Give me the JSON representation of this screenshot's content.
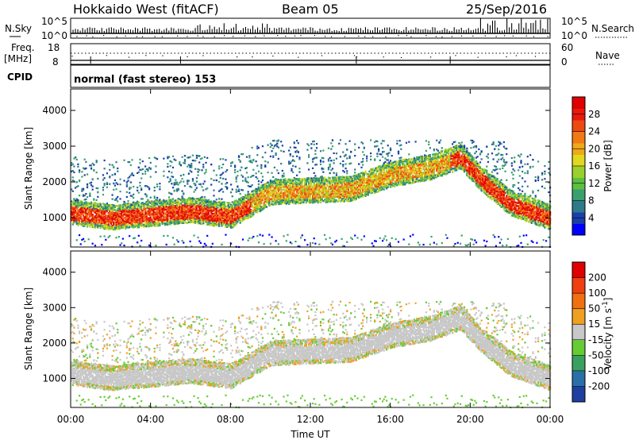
{
  "header": {
    "station": "Hokkaido West (fitACF)",
    "beam": "Beam 05",
    "date": "25/Sep/2016"
  },
  "noise_panel": {
    "left_label": "N.Sky",
    "right_label": "N.Search",
    "left_ticks": [
      "10^5",
      "10^0"
    ],
    "right_ticks": [
      "10^5",
      "10^0"
    ]
  },
  "freq_panel": {
    "left_label_top": "Freq.",
    "left_label_units": "[MHz]",
    "right_label": "Nave",
    "left_ticks": [
      "18",
      "8"
    ],
    "right_ticks": [
      "60",
      "0"
    ]
  },
  "cpid": {
    "label": "CPID",
    "text": "normal (fast stereo) 153"
  },
  "x_axis": {
    "label": "Time UT",
    "ticks": [
      "00:00",
      "04:00",
      "08:00",
      "12:00",
      "16:00",
      "20:00",
      "00:00"
    ]
  },
  "y_axis": {
    "label": "Slant Range [km]",
    "ticks": [
      "4000",
      "3000",
      "2000",
      "1000"
    ]
  },
  "colorbars": {
    "power": {
      "label": "Power [dB]",
      "ticks": [
        "28",
        "24",
        "20",
        "16",
        "12",
        "8",
        "4"
      ],
      "colors": [
        "#0000ff",
        "#1a3faa",
        "#2d7a8a",
        "#3aa070",
        "#5cc040",
        "#9bd02c",
        "#e0d81e",
        "#f0a81a",
        "#f07a14",
        "#ee4a10",
        "#e81a0c",
        "#e00000"
      ]
    },
    "velocity": {
      "label_main": "Velocity [m s",
      "label_sup": "-1",
      "label_end": "]",
      "ticks": [
        "200",
        "100",
        "50",
        "15",
        "-15",
        "-50",
        "-100",
        "-200"
      ],
      "colors": [
        "#1f3fa0",
        "#2a6fa8",
        "#3aa060",
        "#66cc33",
        "#c8c8c8",
        "#f0a020",
        "#f07010",
        "#f04010",
        "#e00000"
      ]
    }
  },
  "chart_data": [
    {
      "type": "heatmap",
      "title": "Power",
      "x": [
        0,
        2,
        4,
        6,
        8,
        10,
        12,
        14,
        16,
        18,
        19.5,
        20.5,
        22,
        24
      ],
      "band_center_km": [
        1150,
        1000,
        1100,
        1200,
        1050,
        1700,
        1750,
        1800,
        2200,
        2400,
        2700,
        2100,
        1400,
        1000
      ],
      "xlabel": "Time UT",
      "ylabel": "Slant Range [km]",
      "xlim": [
        0,
        24
      ],
      "ylim": [
        180,
        4600
      ],
      "colorbar_range_db": [
        0,
        30
      ]
    },
    {
      "type": "heatmap",
      "title": "Velocity",
      "x": [
        0,
        2,
        4,
        6,
        8,
        10,
        12,
        14,
        16,
        18,
        19.5,
        20.5,
        22,
        24
      ],
      "band_center_km": [
        1150,
        1000,
        1100,
        1200,
        1050,
        1700,
        1750,
        1800,
        2200,
        2400,
        2700,
        2100,
        1400,
        1000
      ],
      "xlabel": "Time UT",
      "ylabel": "Slant Range [km]",
      "xlim": [
        0,
        24
      ],
      "ylim": [
        180,
        4600
      ],
      "colorbar_range_ms": [
        -250,
        250
      ]
    }
  ]
}
